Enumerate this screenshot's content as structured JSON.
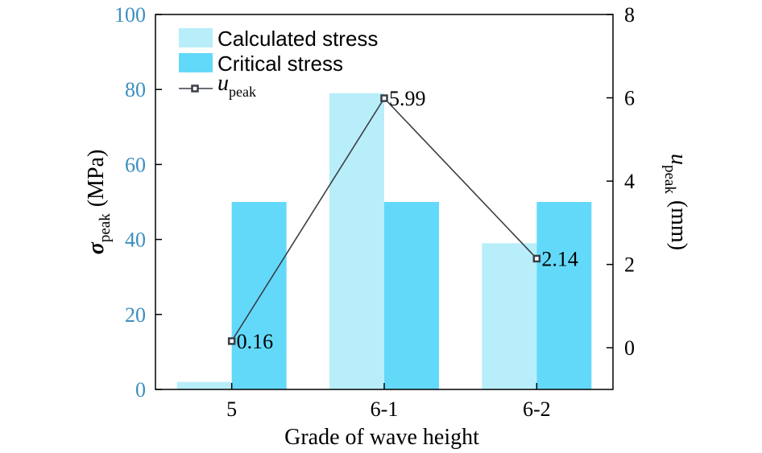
{
  "chart_data": {
    "type": "bar",
    "categories": [
      "5",
      "6-1",
      "6-2"
    ],
    "series": [
      {
        "name": "Calculated stress",
        "axis": "left",
        "kind": "bar",
        "color": "#b8eefa",
        "values": [
          2,
          79,
          39
        ]
      },
      {
        "name": "Critical stress",
        "axis": "left",
        "kind": "bar",
        "color": "#63d9fa",
        "values": [
          50,
          50,
          50
        ]
      },
      {
        "name": "u_peak",
        "axis": "right",
        "kind": "line",
        "color": "#3a3f47",
        "values": [
          0.16,
          5.99,
          2.14
        ]
      }
    ],
    "data_labels": [
      "0.16",
      "5.99",
      "2.14"
    ],
    "xlabel": "Grade of wave height",
    "ylabel": {
      "symbol": "σ",
      "sub": "peak",
      "unit": "(MPa)"
    },
    "y2label": {
      "symbol": "u",
      "sub": "peak",
      "unit": "(mm)"
    },
    "legend": {
      "position": "top-left",
      "items": [
        {
          "label": "Calculated stress"
        },
        {
          "label": "Critical stress"
        },
        {
          "symbol": "u",
          "sub": "peak"
        }
      ]
    },
    "ylim": [
      0,
      100
    ],
    "yticks": [
      "0",
      "20",
      "40",
      "60",
      "80",
      "100"
    ],
    "y2lim": [
      -1,
      8
    ],
    "y2ticks": [
      "0",
      "2",
      "4",
      "6",
      "8"
    ],
    "left_axis_color": "#3c8fbf",
    "grid": false
  }
}
